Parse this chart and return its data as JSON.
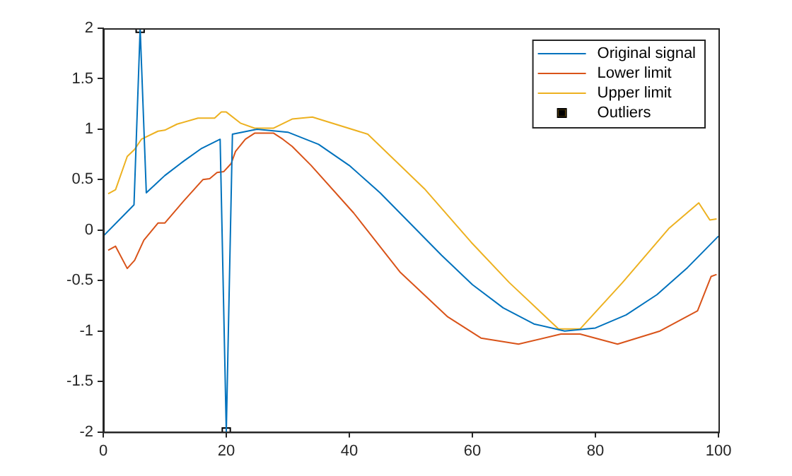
{
  "chart_data": {
    "type": "line",
    "xlim": [
      0,
      100
    ],
    "xticks": [
      0,
      20,
      40,
      60,
      80,
      100
    ],
    "ylim": [
      -2,
      2
    ],
    "yticks": [
      -2,
      -1.5,
      -1,
      -0.5,
      0,
      0.5,
      1,
      1.5,
      2
    ],
    "grid": false,
    "legend": "top right",
    "marker": "none",
    "line_style": "solid",
    "series": [
      {
        "name": "Original signal",
        "color": "#0072bd",
        "x": [
          0,
          5,
          6,
          7,
          10,
          13,
          16,
          19,
          20,
          21,
          25,
          30,
          35,
          40,
          45,
          50,
          55,
          60,
          65,
          70,
          75,
          80,
          85,
          90,
          95,
          100
        ],
        "values": [
          -0.06,
          0.25,
          2,
          0.37,
          0.54,
          0.68,
          0.81,
          0.9,
          -2,
          0.95,
          1,
          0.97,
          0.85,
          0.64,
          0.37,
          0.06,
          -0.25,
          -0.54,
          -0.77,
          -0.93,
          -1,
          -0.97,
          -0.84,
          -0.64,
          -0.37,
          -0.06
        ]
      },
      {
        "name": "Lower limit",
        "color": "#d95319",
        "x": [
          0.8,
          2,
          3.9,
          5.1,
          6.6,
          8.9,
          10,
          13.1,
          16.2,
          17.3,
          18.5,
          19.6,
          20.8,
          21.5,
          23.1,
          24.6,
          27.7,
          29.2,
          30.7,
          33.8,
          40.7,
          48.3,
          56,
          61.4,
          67.5,
          74.4,
          77.5,
          83.6,
          90.5,
          96.6,
          98.8,
          99.7
        ],
        "values": [
          -0.2,
          -0.16,
          -0.38,
          -0.3,
          -0.1,
          0.07,
          0.07,
          0.29,
          0.5,
          0.51,
          0.57,
          0.58,
          0.66,
          0.78,
          0.9,
          0.96,
          0.96,
          0.9,
          0.83,
          0.64,
          0.17,
          -0.42,
          -0.86,
          -1.07,
          -1.13,
          -1.03,
          -1.03,
          -1.13,
          -1,
          -0.8,
          -0.46,
          -0.44
        ]
      },
      {
        "name": "Upper limit",
        "color": "#edb120",
        "x": [
          0.8,
          2,
          3.9,
          5.1,
          6.2,
          8.9,
          10,
          12,
          15.4,
          18.1,
          19.2,
          20,
          22.3,
          24.6,
          27.7,
          30.7,
          34,
          43,
          52.2,
          59.8,
          66,
          74,
          77.5,
          84.4,
          92,
          96.8,
          98.6,
          99.7
        ],
        "values": [
          0.36,
          0.4,
          0.73,
          0.8,
          0.9,
          0.98,
          0.99,
          1.05,
          1.11,
          1.11,
          1.17,
          1.17,
          1.06,
          1.01,
          1.01,
          1.1,
          1.12,
          0.95,
          0.41,
          -0.12,
          -0.52,
          -0.98,
          -0.98,
          -0.52,
          0.02,
          0.27,
          0.1,
          0.11
        ]
      },
      {
        "name": "Outliers",
        "type": "scatter",
        "marker": "square",
        "color": "#000000",
        "x": [
          6,
          20
        ],
        "values": [
          2,
          -2
        ]
      }
    ]
  }
}
